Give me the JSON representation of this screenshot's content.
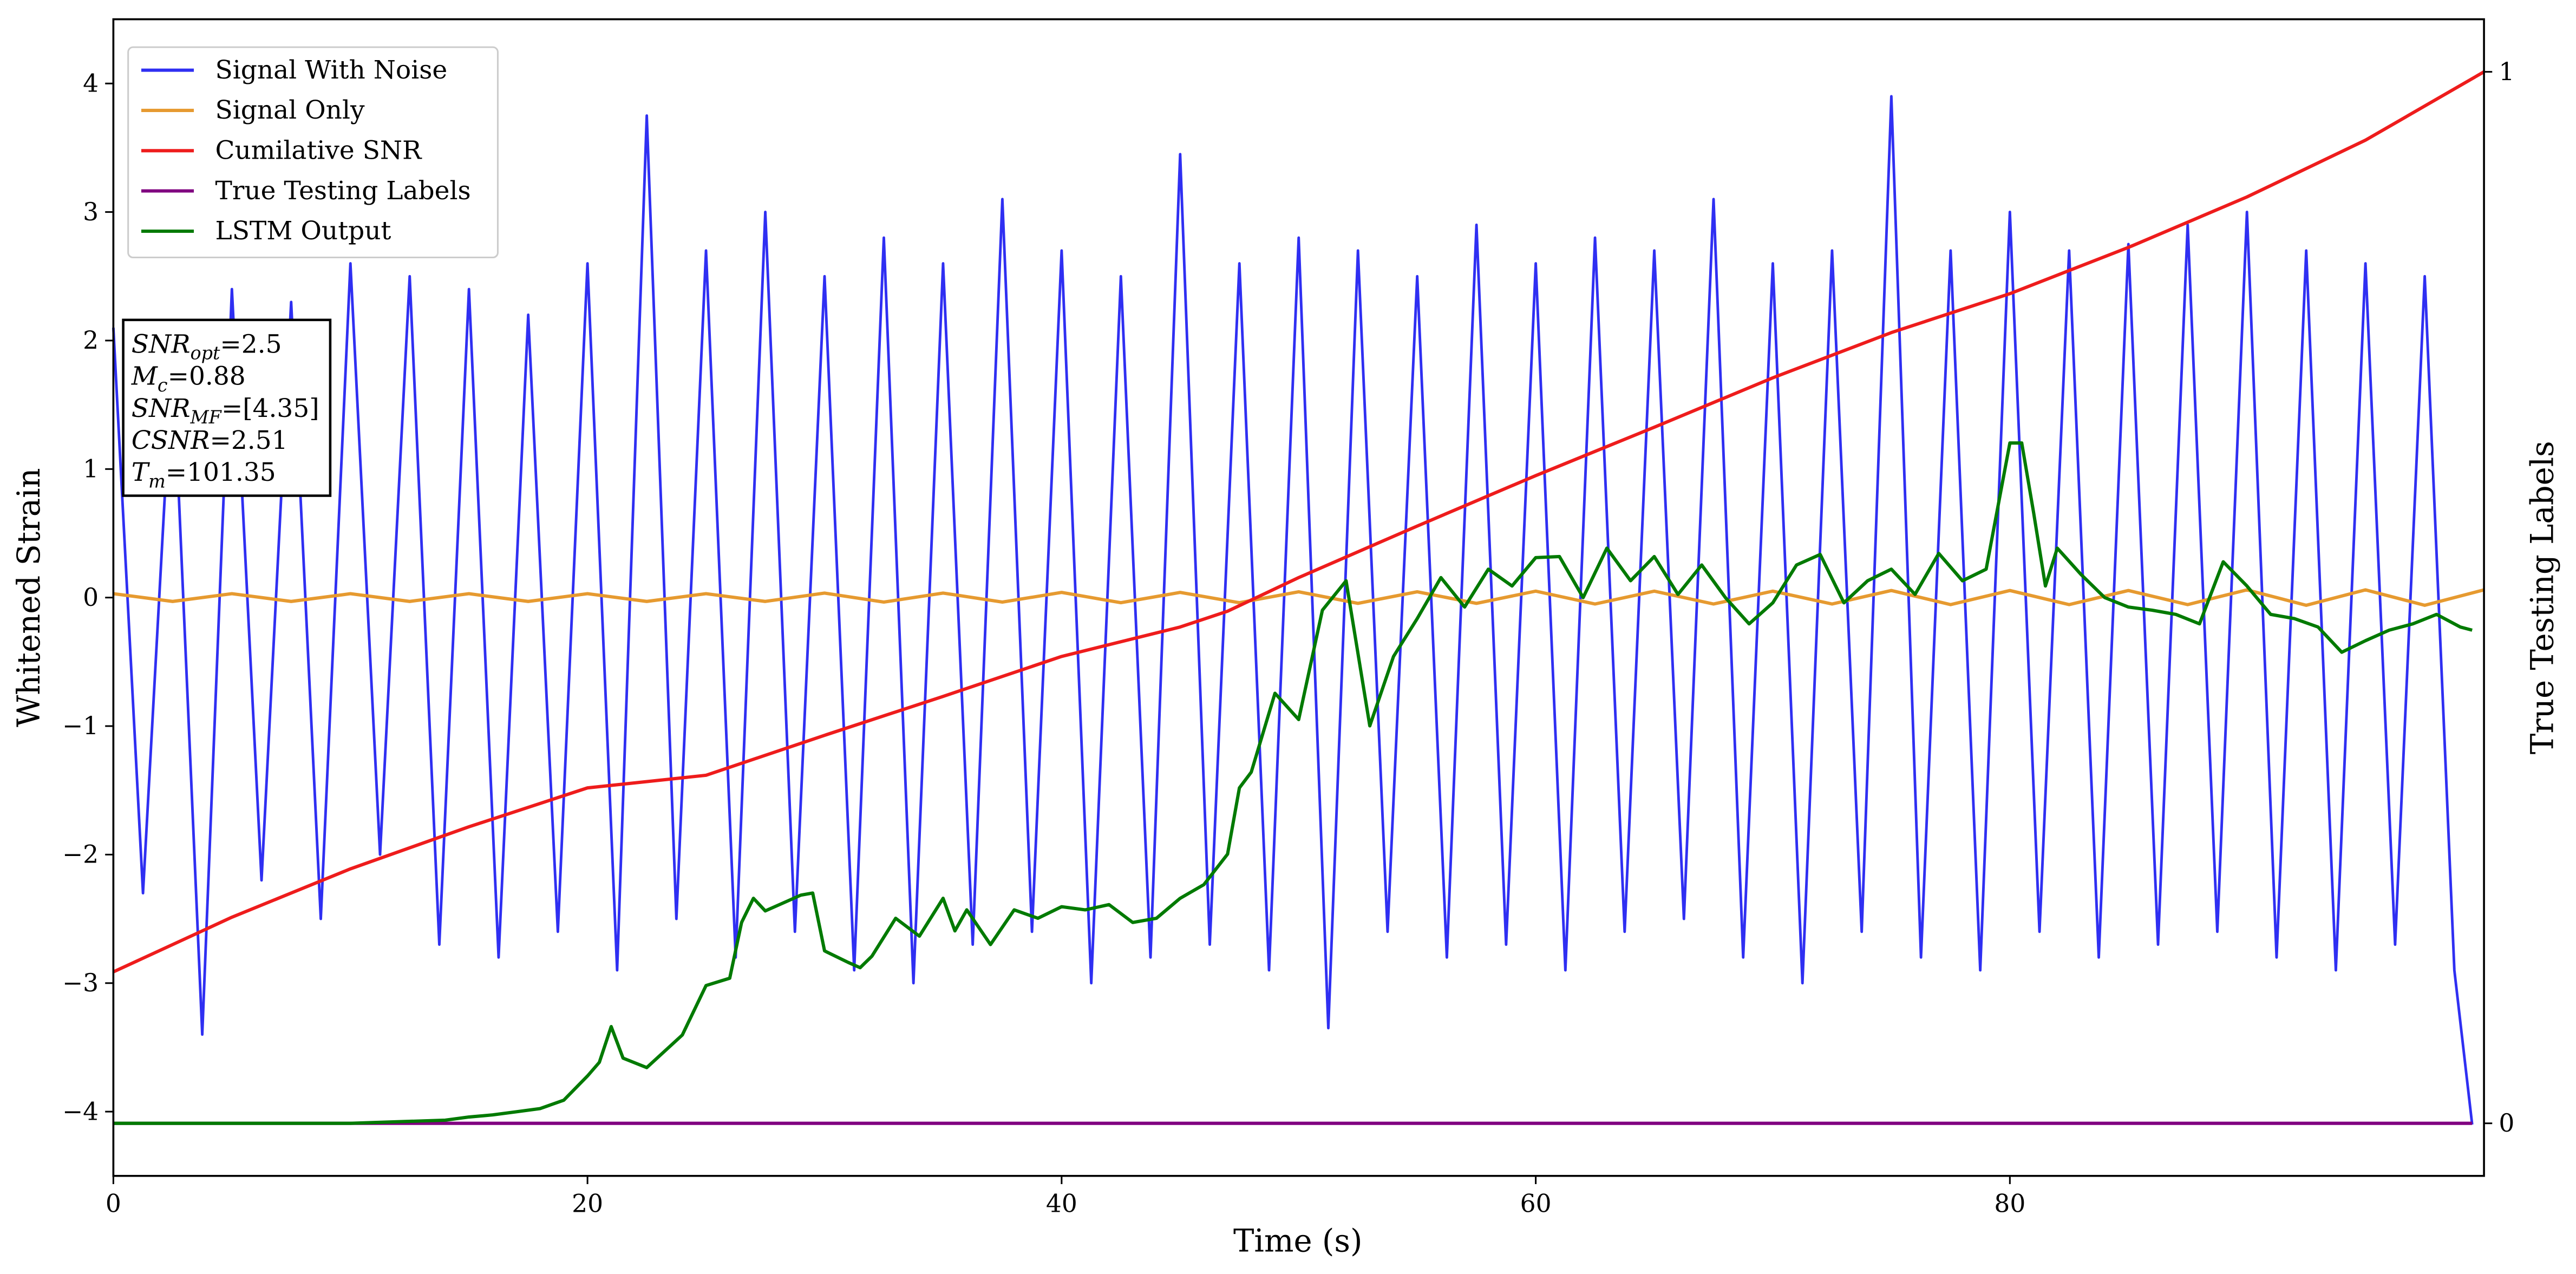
{
  "chart_data": {
    "type": "line",
    "x_label": "Time (s)",
    "y_label": "Whitened Strain",
    "y2_label": "True Testing Labels",
    "xlim": [
      0,
      100
    ],
    "xticks": [
      0,
      20,
      40,
      60,
      80
    ],
    "ylim": [
      -4.5,
      4.5
    ],
    "yticks": [
      {
        "value": -4,
        "label": "−4"
      },
      {
        "value": -3,
        "label": "−3"
      },
      {
        "value": -2,
        "label": "−2"
      },
      {
        "value": -1,
        "label": "−1"
      },
      0,
      1,
      2,
      3,
      4
    ],
    "y2lim": [
      -0.05,
      1.05
    ],
    "y2ticks": [
      0,
      1
    ],
    "legend": "upper left",
    "series": [
      {
        "name": "Signal With Noise",
        "color": "#2f2ff2",
        "x": [
          0,
          1.25,
          2.5,
          3.75,
          5,
          6.25,
          7.5,
          8.75,
          10,
          11.25,
          12.5,
          13.75,
          15,
          16.25,
          17.5,
          18.75,
          20,
          21.25,
          22.5,
          23.75,
          25,
          26.25,
          27.5,
          28.75,
          30,
          31.25,
          32.5,
          33.75,
          35,
          36.25,
          37.5,
          38.75,
          40,
          41.25,
          42.5,
          43.75,
          45,
          46.25,
          47.5,
          48.75,
          50,
          51.25,
          52.5,
          53.75,
          55,
          56.25,
          57.5,
          58.75,
          60,
          61.25,
          62.5,
          63.75,
          65,
          66.25,
          67.5,
          68.75,
          70,
          71.25,
          72.5,
          73.75,
          75,
          76.25,
          77.5,
          78.75,
          80,
          81.25,
          82.5,
          83.75,
          85,
          86.25,
          87.5,
          88.75,
          90,
          91.25,
          92.5,
          93.75,
          95,
          96.25,
          97.5,
          98.75,
          99.5
        ],
        "values": [
          2.1,
          -2.3,
          1.9,
          -3.4,
          2.4,
          -2.2,
          2.3,
          -2.5,
          2.6,
          -2.0,
          2.5,
          -2.7,
          2.4,
          -2.8,
          2.2,
          -2.6,
          2.6,
          -2.9,
          3.75,
          -2.5,
          2.7,
          -2.8,
          3.0,
          -2.6,
          2.5,
          -2.9,
          2.8,
          -3.0,
          2.6,
          -2.7,
          3.1,
          -2.6,
          2.7,
          -3.0,
          2.5,
          -2.8,
          3.45,
          -2.7,
          2.6,
          -2.9,
          2.8,
          -3.35,
          2.7,
          -2.6,
          2.5,
          -2.8,
          2.9,
          -2.7,
          2.6,
          -2.9,
          2.8,
          -2.6,
          2.7,
          -2.5,
          3.1,
          -2.8,
          2.6,
          -3.0,
          2.7,
          -2.6,
          3.9,
          -2.8,
          2.7,
          -2.9,
          3.0,
          -2.6,
          2.7,
          -2.8,
          2.75,
          -2.7,
          2.9,
          -2.6,
          3.0,
          -2.8,
          2.7,
          -2.9,
          2.6,
          -2.7,
          2.5,
          -2.9,
          -4.1
        ]
      },
      {
        "name": "Signal Only",
        "color": "#e69a30",
        "x": [
          0,
          2.5,
          5,
          7.5,
          10,
          12.5,
          15,
          17.5,
          20,
          22.5,
          25,
          27.5,
          30,
          32.5,
          35,
          37.5,
          40,
          42.5,
          45,
          47.5,
          50,
          52.5,
          55,
          57.5,
          60,
          62.5,
          65,
          67.5,
          70,
          72.5,
          75,
          77.5,
          80,
          82.5,
          85,
          87.5,
          90,
          92.5,
          95,
          97.5,
          100
        ],
        "values": [
          0.03,
          -0.03,
          0.03,
          -0.03,
          0.03,
          -0.03,
          0.03,
          -0.03,
          0.03,
          -0.03,
          0.03,
          -0.03,
          0.035,
          -0.035,
          0.035,
          -0.035,
          0.04,
          -0.04,
          0.04,
          -0.04,
          0.045,
          -0.045,
          0.045,
          -0.045,
          0.05,
          -0.05,
          0.05,
          -0.05,
          0.05,
          -0.05,
          0.055,
          -0.055,
          0.055,
          -0.055,
          0.055,
          -0.055,
          0.06,
          -0.06,
          0.06,
          -0.06,
          0.06
        ]
      },
      {
        "name": "Cumilative SNR",
        "color": "#ee1c1c",
        "axis": "y2",
        "x": [
          0,
          5,
          10,
          15,
          20,
          25,
          30,
          35,
          40,
          45,
          47,
          50,
          55,
          60,
          65,
          70,
          75,
          80,
          85,
          90,
          95,
          100
        ],
        "values": [
          0.144,
          0.196,
          0.242,
          0.282,
          0.319,
          0.331,
          0.369,
          0.406,
          0.444,
          0.472,
          0.487,
          0.519,
          0.568,
          0.616,
          0.662,
          0.709,
          0.752,
          0.789,
          0.833,
          0.881,
          0.935,
          1.0
        ]
      },
      {
        "name": "True Testing Labels",
        "color": "#800080",
        "axis": "y2",
        "x": [
          0,
          99.5
        ],
        "values": [
          0,
          0
        ]
      },
      {
        "name": "LSTM Output",
        "color": "#007a00",
        "axis": "y2",
        "x": [
          0,
          10,
          14,
          15,
          16,
          17,
          18,
          19,
          20,
          20.5,
          21,
          21.5,
          22.5,
          24,
          25,
          26,
          26.5,
          27,
          27.5,
          29,
          29.5,
          30,
          31,
          31.5,
          32,
          33,
          34,
          35,
          35.5,
          36,
          37,
          38,
          39,
          40,
          41,
          42,
          43,
          44,
          45,
          46,
          47,
          47.5,
          48,
          49,
          50,
          51,
          52,
          53,
          54,
          55,
          56,
          57,
          58,
          59,
          60,
          61,
          62,
          63,
          64,
          65,
          66,
          67,
          68,
          69,
          70,
          71,
          72,
          73,
          74,
          75,
          76,
          77,
          78,
          79,
          80,
          80.5,
          81,
          81.5,
          82,
          83,
          84,
          85,
          86,
          87,
          88,
          89,
          90,
          91,
          92,
          93,
          94,
          95,
          96,
          97,
          98,
          99,
          99.5
        ],
        "values": [
          0,
          0,
          0.003,
          0.006,
          0.008,
          0.011,
          0.014,
          0.022,
          0.045,
          0.058,
          0.092,
          0.062,
          0.053,
          0.084,
          0.131,
          0.138,
          0.191,
          0.214,
          0.202,
          0.217,
          0.219,
          0.164,
          0.153,
          0.148,
          0.159,
          0.195,
          0.178,
          0.214,
          0.183,
          0.203,
          0.17,
          0.203,
          0.195,
          0.206,
          0.203,
          0.208,
          0.191,
          0.195,
          0.214,
          0.227,
          0.256,
          0.319,
          0.334,
          0.409,
          0.384,
          0.488,
          0.516,
          0.378,
          0.444,
          0.48,
          0.519,
          0.491,
          0.527,
          0.511,
          0.538,
          0.539,
          0.5,
          0.547,
          0.516,
          0.539,
          0.503,
          0.531,
          0.5,
          0.475,
          0.495,
          0.531,
          0.541,
          0.495,
          0.516,
          0.527,
          0.503,
          0.542,
          0.516,
          0.527,
          0.647,
          0.647,
          0.581,
          0.511,
          0.547,
          0.522,
          0.5,
          0.491,
          0.488,
          0.484,
          0.475,
          0.534,
          0.511,
          0.484,
          0.48,
          0.472,
          0.448,
          0.459,
          0.469,
          0.475,
          0.484,
          0.472,
          0.469
        ]
      }
    ],
    "annotation": [
      {
        "base": "SNR",
        "sub": "opt",
        "rest": "=2.5"
      },
      {
        "base": "M",
        "sub": "c",
        "rest": "=0.88"
      },
      {
        "base": "SNR",
        "sub": "MF",
        "rest": "=[4.35]"
      },
      {
        "base": "CSNR",
        "rest": "=2.51"
      },
      {
        "base": "T",
        "sub": "m",
        "rest": "=101.35"
      }
    ]
  }
}
